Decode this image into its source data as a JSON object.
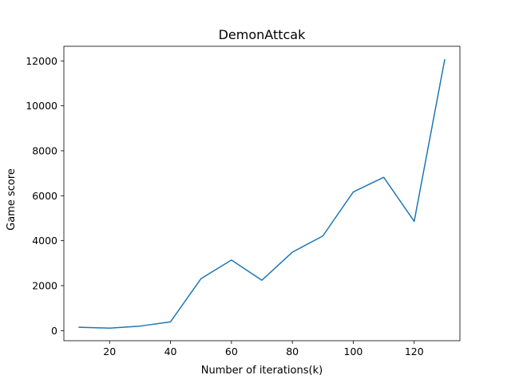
{
  "chart_data": {
    "type": "line",
    "title": "DemonAttcak",
    "xlabel": "Number of iterations(k)",
    "ylabel": "Game score",
    "xlim": [
      5,
      135
    ],
    "ylim": [
      -450,
      12650
    ],
    "xticks": [
      20,
      40,
      60,
      80,
      100,
      120
    ],
    "yticks": [
      0,
      2000,
      4000,
      6000,
      8000,
      10000,
      12000
    ],
    "grid": false,
    "legend": "none",
    "line_color": "#1f77b4",
    "series": [
      {
        "x": [
          10,
          20,
          30,
          40,
          50,
          60,
          70,
          80,
          90,
          100,
          110,
          120,
          130
        ],
        "values": [
          150,
          110,
          200,
          390,
          2310,
          3140,
          2240,
          3490,
          4210,
          6170,
          6820,
          4860,
          12050
        ]
      }
    ]
  }
}
